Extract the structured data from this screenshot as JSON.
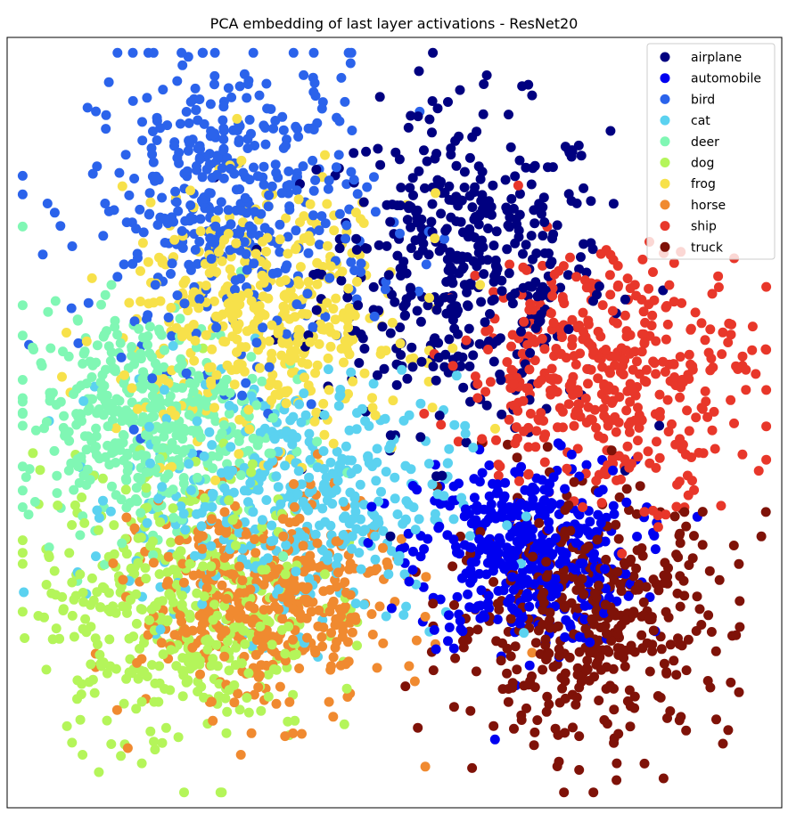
{
  "chart_data": {
    "type": "scatter",
    "title": "PCA embedding of last layer activations - ResNet20",
    "xlabel": "",
    "ylabel": "",
    "axes_visible": false,
    "grid": false,
    "xlim": [
      -10,
      10
    ],
    "ylim": [
      -10,
      10
    ],
    "legend_position": "top-right",
    "points_per_class": 450,
    "series": [
      {
        "name": "airplane",
        "color": "#000080",
        "center": [
          1.8,
          4.0
        ],
        "spread": [
          1.85,
          2.05
        ]
      },
      {
        "name": "automobile",
        "color": "#0000f0",
        "center": [
          3.4,
          -3.4
        ],
        "spread": [
          1.4,
          1.2
        ]
      },
      {
        "name": "bird",
        "color": "#2b63eb",
        "center": [
          -4.2,
          5.6
        ],
        "spread": [
          1.85,
          2.05
        ]
      },
      {
        "name": "cat",
        "color": "#5bd2f0",
        "center": [
          -2.6,
          -2.0
        ],
        "spread": [
          2.1,
          1.6
        ]
      },
      {
        "name": "deer",
        "color": "#80f7b4",
        "center": [
          -6.5,
          0.1
        ],
        "spread": [
          1.6,
          1.4
        ]
      },
      {
        "name": "dog",
        "color": "#b4f55a",
        "center": [
          -5.6,
          -4.7
        ],
        "spread": [
          1.8,
          1.85
        ]
      },
      {
        "name": "frog",
        "color": "#f7e14a",
        "center": [
          -3.3,
          2.6
        ],
        "spread": [
          1.85,
          1.6
        ]
      },
      {
        "name": "horse",
        "color": "#f08a30",
        "center": [
          -3.3,
          -4.7
        ],
        "spread": [
          1.6,
          1.4
        ]
      },
      {
        "name": "ship",
        "color": "#e8372a",
        "center": [
          5.5,
          1.3
        ],
        "spread": [
          1.85,
          1.6
        ]
      },
      {
        "name": "truck",
        "color": "#7f1208",
        "center": [
          5.0,
          -5.1
        ],
        "spread": [
          1.85,
          1.6
        ]
      }
    ]
  }
}
